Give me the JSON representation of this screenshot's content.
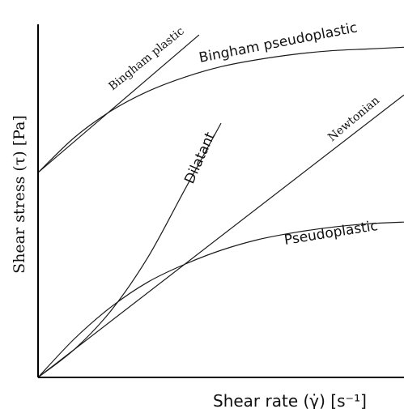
{
  "chart_data": {
    "type": "line",
    "xlabel": "Shear rate (γ̇) [s⁻¹]",
    "ylabel": "Shear stress (τ) [Pa]",
    "title": "",
    "series": [
      {
        "name": "Bingham plastic",
        "x": [
          0,
          0.44
        ],
        "y": [
          0.58,
          0.97
        ]
      },
      {
        "name": "Bingham pseudoplastic",
        "x": [
          0,
          0.1,
          0.2,
          0.3,
          0.4,
          0.5,
          0.6,
          0.7,
          0.8,
          0.9,
          1.0
        ],
        "y": [
          0.58,
          0.68,
          0.755,
          0.81,
          0.85,
          0.88,
          0.9,
          0.915,
          0.925,
          0.93,
          0.935
        ]
      },
      {
        "name": "Dilatant",
        "x": [
          0,
          0.1,
          0.2,
          0.3,
          0.4,
          0.5
        ],
        "y": [
          0,
          0.08,
          0.19,
          0.34,
          0.53,
          0.72
        ]
      },
      {
        "name": "Newtonian",
        "x": [
          0,
          1.0
        ],
        "y": [
          0,
          0.8
        ]
      },
      {
        "name": "Pseudoplastic",
        "x": [
          0,
          0.1,
          0.2,
          0.3,
          0.4,
          0.5,
          0.6,
          0.7,
          0.8,
          0.9,
          1.0
        ],
        "y": [
          0,
          0.11,
          0.2,
          0.27,
          0.32,
          0.36,
          0.39,
          0.41,
          0.425,
          0.435,
          0.44
        ]
      }
    ]
  }
}
